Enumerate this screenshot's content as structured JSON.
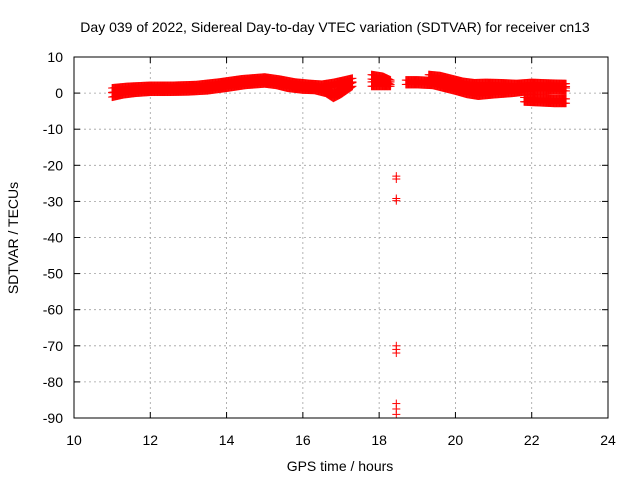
{
  "chart_data": {
    "type": "scatter",
    "title": "Day 039 of 2022, Sidereal Day-to-day VTEC variation (SDTVAR) for receiver cn13",
    "xlabel": "GPS time / hours",
    "ylabel": "SDTVAR / TECUs",
    "xlim": [
      10,
      24
    ],
    "ylim": [
      -90,
      10
    ],
    "xticks": [
      10,
      12,
      14,
      16,
      18,
      20,
      22,
      24
    ],
    "yticks": [
      10,
      0,
      -10,
      -20,
      -30,
      -40,
      -50,
      -60,
      -70,
      -80,
      -90
    ],
    "grid": true,
    "marker": "plus",
    "color": "#ff0000",
    "series": [
      {
        "name": "SDTVAR",
        "segments": [
          [
            [
              11.0,
              -0.5
            ],
            [
              11.3,
              0.2
            ],
            [
              11.6,
              0.6
            ],
            [
              12.0,
              0.9
            ],
            [
              12.5,
              0.9
            ],
            [
              13.0,
              1.0
            ],
            [
              13.5,
              1.3
            ],
            [
              14.0,
              2.0
            ],
            [
              14.5,
              2.8
            ],
            [
              15.0,
              3.2
            ],
            [
              15.3,
              2.8
            ],
            [
              15.6,
              2.0
            ],
            [
              16.0,
              1.5
            ],
            [
              16.3,
              1.4
            ],
            [
              16.6,
              0.6
            ],
            [
              16.8,
              -0.8
            ],
            [
              17.0,
              0.3
            ],
            [
              17.3,
              2.5
            ]
          ],
          [
            [
              11.0,
              0.8
            ],
            [
              11.4,
              1.2
            ],
            [
              12.0,
              1.5
            ],
            [
              12.6,
              1.5
            ],
            [
              13.2,
              1.7
            ],
            [
              13.8,
              2.4
            ],
            [
              14.4,
              3.3
            ],
            [
              15.0,
              3.8
            ],
            [
              15.4,
              3.2
            ],
            [
              15.8,
              2.4
            ],
            [
              16.2,
              2.0
            ],
            [
              16.5,
              1.8
            ],
            [
              16.8,
              2.3
            ],
            [
              17.1,
              3.0
            ],
            [
              17.3,
              3.5
            ]
          ],
          [
            [
              17.8,
              4.5
            ],
            [
              18.1,
              4.0
            ],
            [
              18.3,
              3.0
            ]
          ],
          [
            [
              17.8,
              2.5
            ],
            [
              18.0,
              2.5
            ],
            [
              18.3,
              2.5
            ]
          ],
          [
            [
              18.7,
              3.0
            ],
            [
              19.0,
              3.0
            ],
            [
              19.4,
              2.8
            ],
            [
              19.7,
              2.0
            ],
            [
              20.0,
              1.2
            ],
            [
              20.3,
              0.3
            ],
            [
              20.6,
              -0.2
            ],
            [
              21.0,
              0.2
            ],
            [
              21.5,
              0.6
            ],
            [
              22.0,
              1.2
            ],
            [
              22.5,
              1.3
            ],
            [
              22.9,
              1.2
            ]
          ],
          [
            [
              19.3,
              4.5
            ],
            [
              19.6,
              4.2
            ],
            [
              19.9,
              3.4
            ],
            [
              20.2,
              2.6
            ],
            [
              20.5,
              2.2
            ],
            [
              20.8,
              2.3
            ],
            [
              21.2,
              2.2
            ],
            [
              21.6,
              2.0
            ],
            [
              22.0,
              2.3
            ],
            [
              22.5,
              2.1
            ],
            [
              22.9,
              2.0
            ]
          ],
          [
            [
              21.8,
              -1.8
            ],
            [
              22.2,
              -2.0
            ],
            [
              22.6,
              -2.2
            ],
            [
              22.9,
              -2.2
            ]
          ]
        ],
        "outliers": [
          [
            18.45,
            -23
          ],
          [
            18.45,
            -23.8
          ],
          [
            18.45,
            -29.2
          ],
          [
            18.45,
            -29.8
          ],
          [
            18.45,
            -70
          ],
          [
            18.45,
            -71
          ],
          [
            18.45,
            -72
          ],
          [
            18.45,
            -86
          ],
          [
            18.45,
            -87.5
          ],
          [
            18.45,
            -89
          ]
        ]
      }
    ]
  }
}
